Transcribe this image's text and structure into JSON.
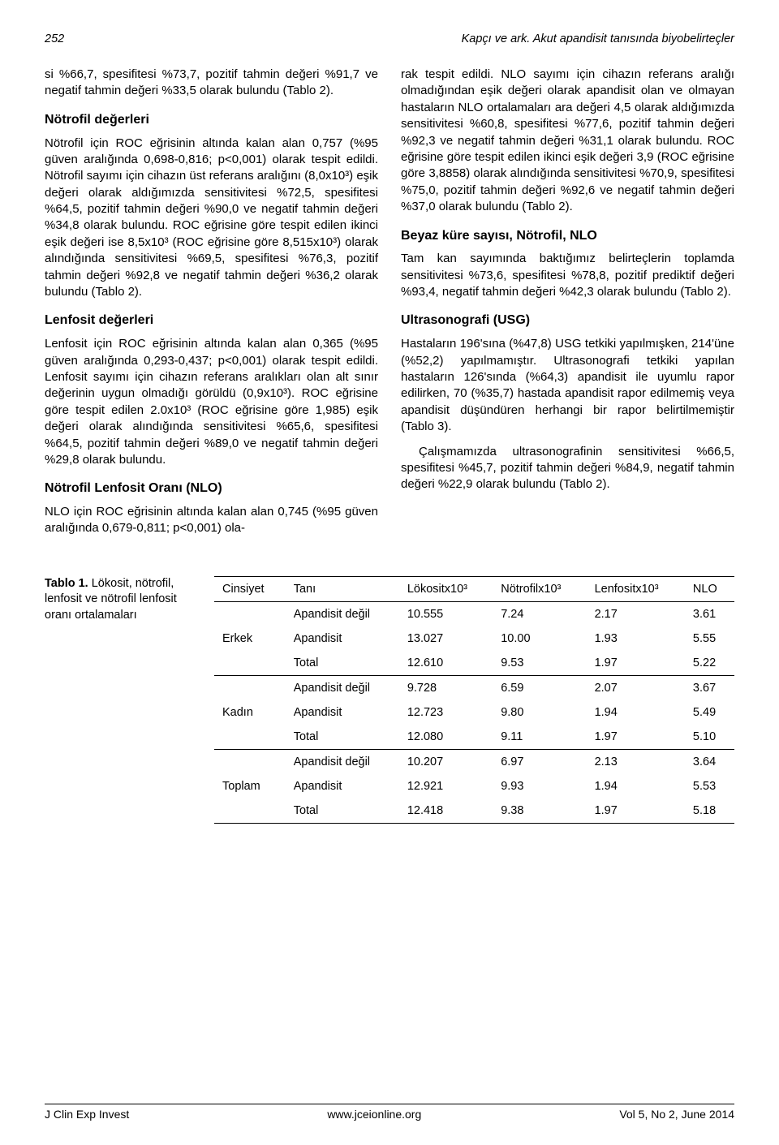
{
  "header": {
    "page_no": "252",
    "running_title": "Kapçı ve ark. Akut apandisit tanısında biyobelirteçler"
  },
  "left": {
    "intro": "si %66,7, spesifitesi %73,7, pozitif tahmin değeri %91,7 ve negatif tahmin değeri %33,5 olarak bulundu (Tablo 2).",
    "h1": "Nötrofil değerleri",
    "p1": "Nötrofil için ROC eğrisinin altında kalan alan 0,757 (%95 güven aralığında 0,698-0,816; p<0,001) olarak tespit edildi. Nötrofil sayımı için cihazın üst referans aralığını (8,0x10³) eşik değeri olarak aldığımızda sensitivitesi %72,5, spesifitesi %64,5, pozitif tahmin değeri %90,0 ve negatif tahmin değeri %34,8 olarak bulundu. ROC eğrisine göre tespit edilen ikinci eşik değeri ise 8,5x10³ (ROC eğrisine göre 8,515x10³) olarak alındığında sensitivitesi %69,5, spesifitesi %76,3, pozitif tahmin değeri %92,8 ve negatif tahmin değeri %36,2 olarak bulundu (Tablo 2).",
    "h2": "Lenfosit değerleri",
    "p2": "Lenfosit için ROC eğrisinin altında kalan alan 0,365 (%95 güven aralığında 0,293-0,437; p<0,001) olarak tespit edildi. Lenfosit sayımı için cihazın referans aralıkları olan alt sınır değerinin uygun olmadığı görüldü (0,9x10³). ROC eğrisine göre tespit edilen 2.0x10³ (ROC eğrisine göre 1,985) eşik değeri olarak alındığında sensitivitesi %65,6, spesifitesi %64,5, pozitif tahmin değeri %89,0 ve negatif tahmin değeri %29,8 olarak bulundu.",
    "h3": "Nötrofil Lenfosit Oranı (NLO)",
    "p3": "NLO için ROC eğrisinin altında kalan alan 0,745 (%95 güven aralığında 0,679-0,811; p<0,001) ola-"
  },
  "right": {
    "p1": "rak tespit edildi. NLO sayımı için cihazın referans aralığı olmadığından eşik değeri olarak apandisit olan ve olmayan hastaların NLO ortalamaları ara değeri 4,5 olarak aldığımızda sensitivitesi %60,8, spesifitesi %77,6, pozitif tahmin değeri %92,3 ve negatif tahmin değeri %31,1 olarak bulundu. ROC eğrisine göre tespit edilen ikinci eşik değeri 3,9 (ROC eğrisine göre 3,8858) olarak alındığında sensitivitesi %70,9, spesifitesi %75,0, pozitif tahmin değeri %92,6 ve negatif tahmin değeri %37,0 olarak bulundu (Tablo 2).",
    "h1": "Beyaz küre sayısı, Nötrofil, NLO",
    "p2": "Tam kan sayımında baktığımız belirteçlerin toplamda sensitivitesi %73,6, spesifitesi %78,8, pozitif prediktif değeri %93,4, negatif tahmin değeri %42,3 olarak bulundu (Tablo 2).",
    "h2": "Ultrasonografi (USG)",
    "p3": "Hastaların 196'sına (%47,8) USG tetkiki yapılmışken, 214'üne (%52,2) yapılmamıştır. Ultrasonografi tetkiki yapılan hastaların 126'sında (%64,3) apandisit ile uyumlu rapor edilirken, 70 (%35,7) hastada apandisit rapor edilmemiş veya apandisit düşündüren herhangi bir rapor belirtilmemiştir (Tablo 3).",
    "p4": "Çalışmamızda ultrasonografinin sensitivitesi %66,5, spesifitesi %45,7, pozitif tahmin değeri %84,9, negatif tahmin değeri %22,9 olarak bulundu (Tablo 2)."
  },
  "table": {
    "caption_bold": "Tablo 1.",
    "caption_rest": " Lökosit, nötrofil, lenfosit ve nötrofil lenfosit oranı ortalamaları",
    "columns": [
      "Cinsiyet",
      "Tanı",
      "Lökositx10³",
      "Nötrofilx10³",
      "Lenfositx10³",
      "NLO"
    ],
    "groups": [
      {
        "label": "Erkek",
        "rows": [
          [
            "Apandisit değil",
            "10.555",
            "7.24",
            "2.17",
            "3.61"
          ],
          [
            "Apandisit",
            "13.027",
            "10.00",
            "1.93",
            "5.55"
          ],
          [
            "Total",
            "12.610",
            "9.53",
            "1.97",
            "5.22"
          ]
        ]
      },
      {
        "label": "Kadın",
        "rows": [
          [
            "Apandisit değil",
            "9.728",
            "6.59",
            "2.07",
            "3.67"
          ],
          [
            "Apandisit",
            "12.723",
            "9.80",
            "1.94",
            "5.49"
          ],
          [
            "Total",
            "12.080",
            "9.11",
            "1.97",
            "5.10"
          ]
        ]
      },
      {
        "label": "Toplam",
        "rows": [
          [
            "Apandisit değil",
            "10.207",
            "6.97",
            "2.13",
            "3.64"
          ],
          [
            "Apandisit",
            "12.921",
            "9.93",
            "1.94",
            "5.53"
          ],
          [
            "Total",
            "12.418",
            "9.38",
            "1.97",
            "5.18"
          ]
        ]
      }
    ]
  },
  "footer": {
    "left": "J Clin Exp Invest",
    "center": "www.jceionline.org",
    "right": "Vol 5, No 2, June 2014"
  }
}
